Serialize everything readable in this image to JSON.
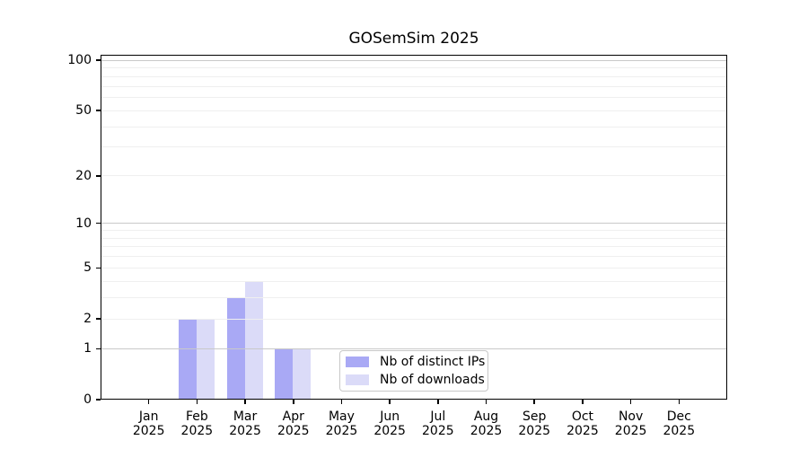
{
  "chart_data": {
    "type": "bar",
    "title": "GOSemSim 2025",
    "categories": [
      "Jan",
      "Feb",
      "Mar",
      "Apr",
      "May",
      "Jun",
      "Jul",
      "Aug",
      "Sep",
      "Oct",
      "Nov",
      "Dec"
    ],
    "x_year_label": "2025",
    "series": [
      {
        "name": "Nb of distinct IPs",
        "color": "#a9a9f5",
        "values": [
          0,
          2,
          3,
          1,
          0,
          0,
          0,
          0,
          0,
          0,
          0,
          0
        ]
      },
      {
        "name": "Nb of downloads",
        "color": "#dbdbf8",
        "values": [
          0,
          2,
          4,
          1,
          0,
          0,
          0,
          0,
          0,
          0,
          0,
          0
        ]
      }
    ],
    "y_ticks": [
      0,
      1,
      2,
      5,
      10,
      20,
      50,
      100
    ],
    "major_gridlines": [
      1,
      10,
      100
    ],
    "minor_gridlines": [
      2,
      3,
      4,
      5,
      6,
      7,
      8,
      9,
      20,
      30,
      40,
      50,
      60,
      70,
      80,
      90
    ],
    "scale": "log1p",
    "ylim": [
      0,
      108
    ],
    "grid": true,
    "legend_position": "bottom-center"
  },
  "colors": {
    "background": "#ffffff",
    "axis": "#000000",
    "major_grid": "#c9c9c9",
    "minor_grid": "#efefef",
    "legend_border": "#c8c8c8"
  }
}
